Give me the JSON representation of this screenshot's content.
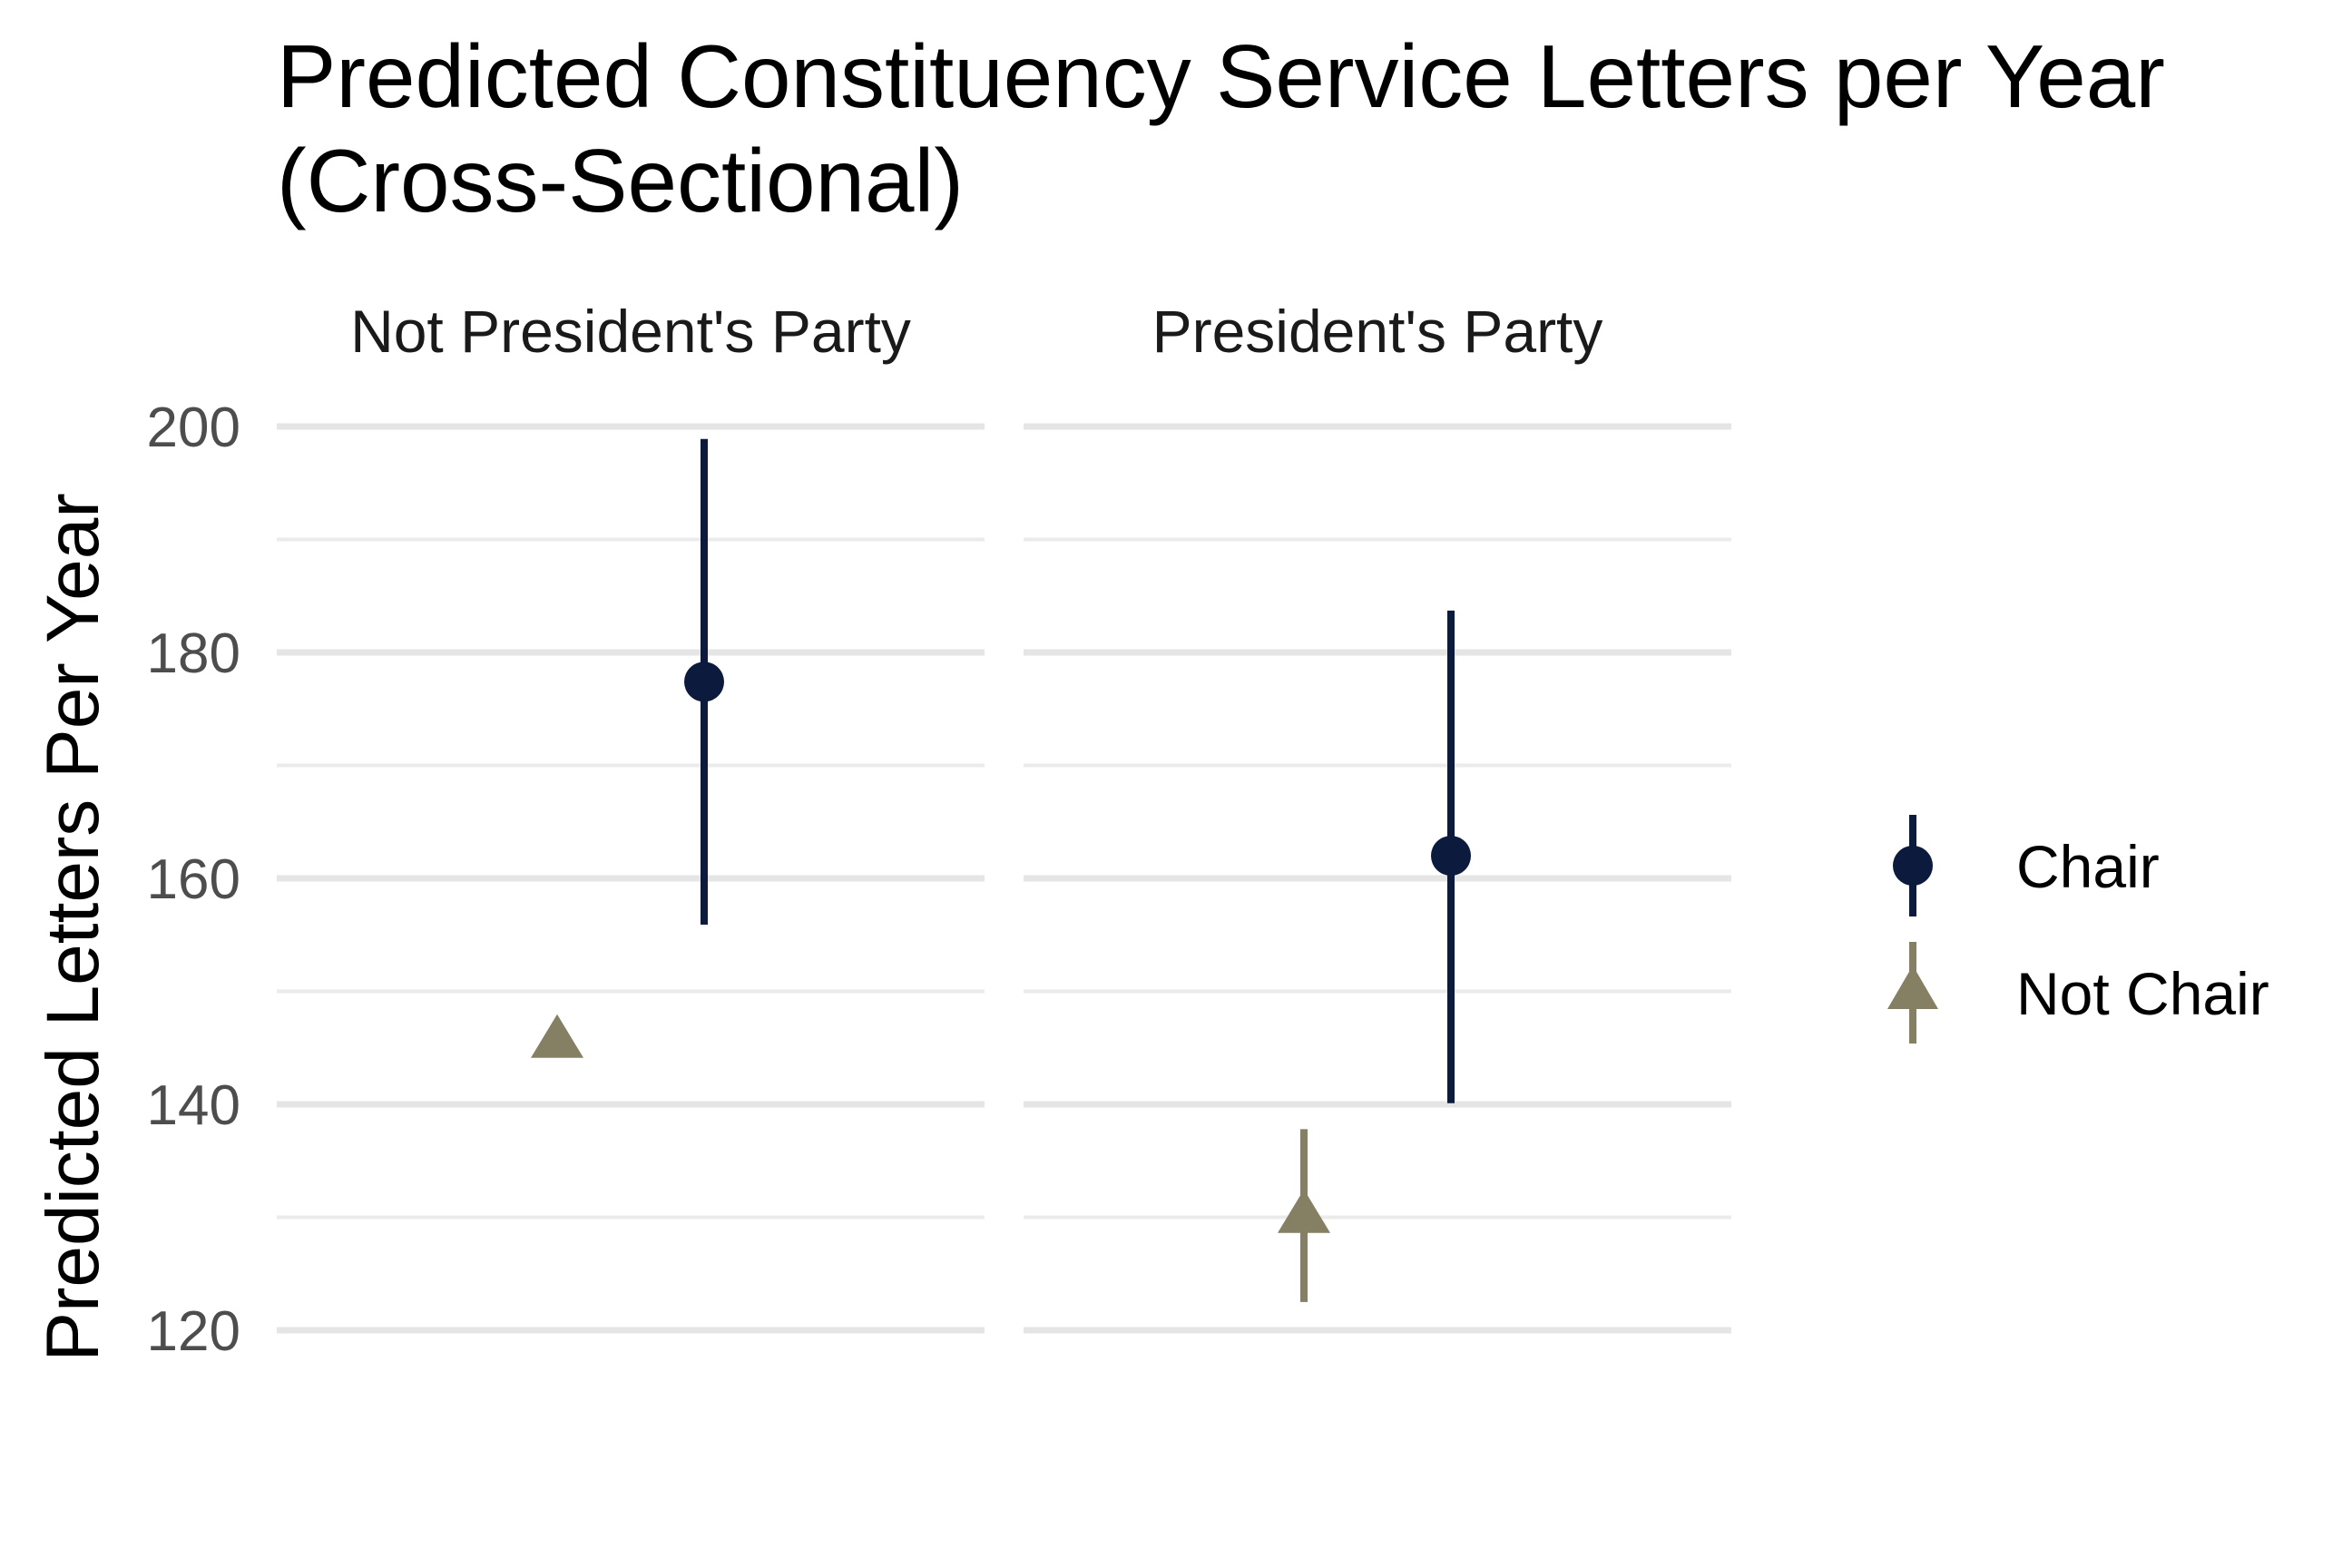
{
  "chart_data": {
    "type": "scatter",
    "title": "Predicted Constituency Service Letters per Year",
    "title_line2": "(Cross-Sectional)",
    "ylabel": "Predicted Letters Per Year",
    "xlabel": "",
    "ylim": [
      115,
      203
    ],
    "yticks": [
      120,
      140,
      160,
      180,
      200
    ],
    "grid": true,
    "legend_position": "right",
    "facets": [
      "Not President's Party",
      "President's Party"
    ],
    "series": [
      {
        "name": "Chair",
        "color": "#0b1a3d",
        "marker": "circle",
        "points": [
          {
            "facet": "Not President's Party",
            "y": 177.4,
            "low": 155.9,
            "high": 198.9
          },
          {
            "facet": "President's Party",
            "y": 162.0,
            "low": 140.1,
            "high": 183.7
          }
        ]
      },
      {
        "name": "Not Chair",
        "color": "#857f64",
        "marker": "triangle",
        "points": [
          {
            "facet": "Not President's Party",
            "y": 145.8,
            "low": 145.3,
            "high": 146.3
          },
          {
            "facet": "President's Party",
            "y": 130.3,
            "low": 122.5,
            "high": 137.8
          }
        ]
      }
    ]
  }
}
